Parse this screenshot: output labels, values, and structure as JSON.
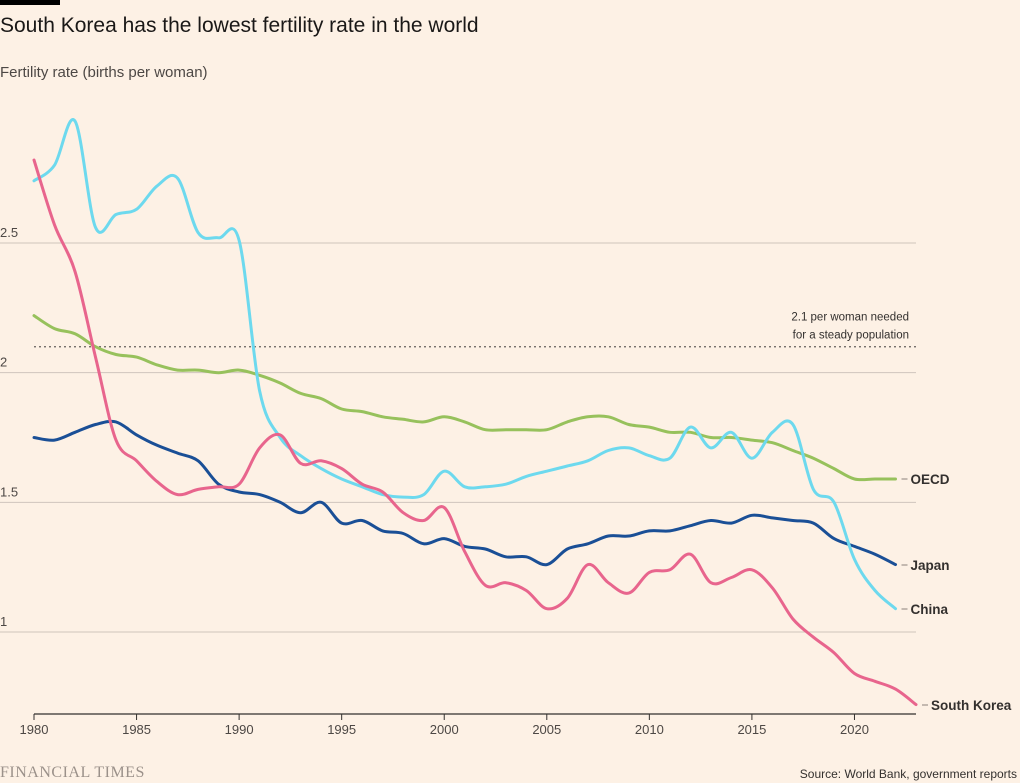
{
  "header": {
    "title": "South Korea has the lowest fertility rate in the world",
    "subtitle": "Fertility rate (births per woman)"
  },
  "footer": {
    "logo_text": "FINANCIAL TIMES",
    "source": "Source: World Bank, government reports"
  },
  "colors": {
    "background": "#fdf1e5",
    "grid": "#cfc5bc",
    "axis": "#33302e",
    "south_korea": "#e8658d",
    "china": "#6dd9ee",
    "oecd": "#97c15c",
    "japan": "#1a4f96"
  },
  "chart_data": {
    "type": "line",
    "title": "South Korea has the lowest fertility rate in the world",
    "ylabel": "Fertility rate (births per woman)",
    "xlim": [
      1980,
      2023
    ],
    "ylim": [
      0.73,
      3.0
    ],
    "x_ticks": [
      1980,
      1985,
      1990,
      1995,
      2000,
      2005,
      2010,
      2015,
      2020
    ],
    "y_ticks": [
      {
        "value": 1,
        "label": "1"
      },
      {
        "value": 1.5,
        "label": "1.5"
      },
      {
        "value": 2,
        "label": "2"
      },
      {
        "value": 2.5,
        "label": "2.5"
      }
    ],
    "grid": true,
    "reference_line": {
      "value": 2.1,
      "label_lines": [
        "2.1 per woman needed",
        "for a steady population"
      ]
    },
    "series": [
      {
        "name": "OECD",
        "color": "#97c15c",
        "x": [
          1980,
          1981,
          1982,
          1983,
          1984,
          1985,
          1986,
          1987,
          1988,
          1989,
          1990,
          1991,
          1992,
          1993,
          1994,
          1995,
          1996,
          1997,
          1998,
          1999,
          2000,
          2001,
          2002,
          2003,
          2004,
          2005,
          2006,
          2007,
          2008,
          2009,
          2010,
          2011,
          2012,
          2013,
          2014,
          2015,
          2016,
          2017,
          2018,
          2019,
          2020,
          2021,
          2022
        ],
        "y": [
          2.22,
          2.17,
          2.15,
          2.1,
          2.07,
          2.06,
          2.03,
          2.01,
          2.01,
          2.0,
          2.01,
          1.99,
          1.96,
          1.92,
          1.9,
          1.86,
          1.85,
          1.83,
          1.82,
          1.81,
          1.83,
          1.81,
          1.78,
          1.78,
          1.78,
          1.78,
          1.81,
          1.83,
          1.83,
          1.8,
          1.79,
          1.77,
          1.77,
          1.75,
          1.75,
          1.74,
          1.73,
          1.7,
          1.67,
          1.63,
          1.59,
          1.59,
          1.59
        ]
      },
      {
        "name": "Japan",
        "color": "#1a4f96",
        "x": [
          1980,
          1981,
          1982,
          1983,
          1984,
          1985,
          1986,
          1987,
          1988,
          1989,
          1990,
          1991,
          1992,
          1993,
          1994,
          1995,
          1996,
          1997,
          1998,
          1999,
          2000,
          2001,
          2002,
          2003,
          2004,
          2005,
          2006,
          2007,
          2008,
          2009,
          2010,
          2011,
          2012,
          2013,
          2014,
          2015,
          2016,
          2017,
          2018,
          2019,
          2020,
          2021,
          2022
        ],
        "y": [
          1.75,
          1.74,
          1.77,
          1.8,
          1.81,
          1.76,
          1.72,
          1.69,
          1.66,
          1.57,
          1.54,
          1.53,
          1.5,
          1.46,
          1.5,
          1.42,
          1.43,
          1.39,
          1.38,
          1.34,
          1.36,
          1.33,
          1.32,
          1.29,
          1.29,
          1.26,
          1.32,
          1.34,
          1.37,
          1.37,
          1.39,
          1.39,
          1.41,
          1.43,
          1.42,
          1.45,
          1.44,
          1.43,
          1.42,
          1.36,
          1.33,
          1.3,
          1.26
        ]
      },
      {
        "name": "China",
        "color": "#6dd9ee",
        "x": [
          1980,
          1981,
          1982,
          1983,
          1984,
          1985,
          1986,
          1987,
          1988,
          1989,
          1990,
          1991,
          1992,
          1993,
          1994,
          1995,
          1996,
          1997,
          1998,
          1999,
          2000,
          2001,
          2002,
          2003,
          2004,
          2005,
          2006,
          2007,
          2008,
          2009,
          2010,
          2011,
          2012,
          2013,
          2014,
          2015,
          2016,
          2017,
          2018,
          2019,
          2020,
          2021,
          2022
        ],
        "y": [
          2.74,
          2.8,
          2.97,
          2.56,
          2.61,
          2.63,
          2.72,
          2.75,
          2.54,
          2.52,
          2.51,
          1.93,
          1.75,
          1.68,
          1.63,
          1.59,
          1.56,
          1.53,
          1.52,
          1.53,
          1.62,
          1.56,
          1.56,
          1.57,
          1.6,
          1.62,
          1.64,
          1.66,
          1.7,
          1.71,
          1.68,
          1.67,
          1.79,
          1.71,
          1.77,
          1.67,
          1.77,
          1.8,
          1.55,
          1.5,
          1.28,
          1.16,
          1.09
        ]
      },
      {
        "name": "South Korea",
        "color": "#e8658d",
        "x": [
          1980,
          1981,
          1982,
          1983,
          1984,
          1985,
          1986,
          1987,
          1988,
          1989,
          1990,
          1991,
          1992,
          1993,
          1994,
          1995,
          1996,
          1997,
          1998,
          1999,
          2000,
          2001,
          2002,
          2003,
          2004,
          2005,
          2006,
          2007,
          2008,
          2009,
          2010,
          2011,
          2012,
          2013,
          2014,
          2015,
          2016,
          2017,
          2018,
          2019,
          2020,
          2021,
          2022,
          2023
        ],
        "y": [
          2.82,
          2.57,
          2.39,
          2.06,
          1.74,
          1.66,
          1.58,
          1.53,
          1.55,
          1.56,
          1.57,
          1.71,
          1.76,
          1.65,
          1.66,
          1.63,
          1.57,
          1.54,
          1.46,
          1.43,
          1.48,
          1.31,
          1.18,
          1.19,
          1.16,
          1.09,
          1.13,
          1.26,
          1.19,
          1.15,
          1.23,
          1.24,
          1.3,
          1.19,
          1.21,
          1.24,
          1.17,
          1.05,
          0.98,
          0.92,
          0.84,
          0.81,
          0.78,
          0.72
        ]
      }
    ]
  }
}
